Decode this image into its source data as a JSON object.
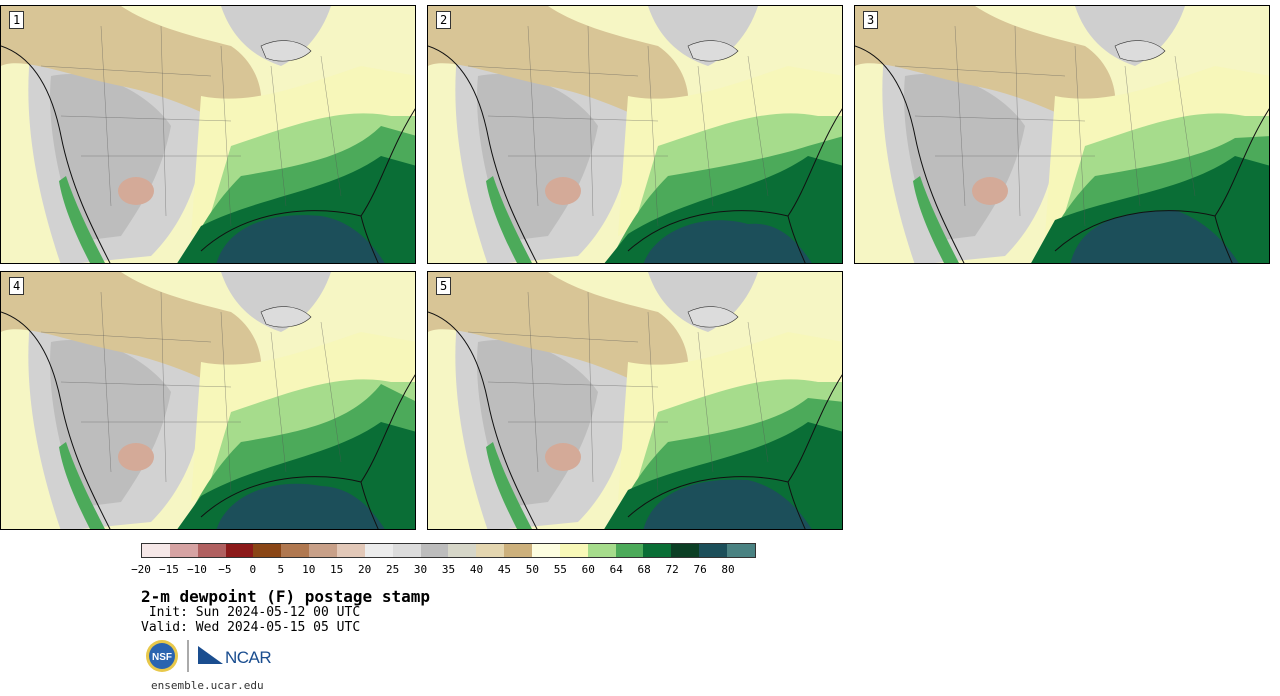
{
  "panels": [
    {
      "label": "1"
    },
    {
      "label": "2"
    },
    {
      "label": "3"
    },
    {
      "label": "4"
    },
    {
      "label": "5"
    }
  ],
  "colorbar": {
    "colors": [
      "#f6e8e8",
      "#d6a3a3",
      "#b06060",
      "#8c1a1a",
      "#8a4616",
      "#b07850",
      "#c8a088",
      "#e2c8b8",
      "#ececec",
      "#dcdcdc",
      "#bcbcbc",
      "#d6d6c8",
      "#e4d6b0",
      "#ccb07c",
      "#fdfde0",
      "#f8f8b8",
      "#a6dc8c",
      "#4caa5a",
      "#0a6e36",
      "#0c3f25",
      "#1c4f5a",
      "#4a8282"
    ],
    "ticks": [
      "−20",
      "−15",
      "−10",
      "−5",
      "0",
      "5",
      "10",
      "15",
      "20",
      "25",
      "30",
      "35",
      "40",
      "45",
      "50",
      "55",
      "60",
      "64",
      "68",
      "72",
      "76",
      "80"
    ]
  },
  "title": "2-m dewpoint (F) postage stamp",
  "init": " Init: Sun 2024-05-12 00 UTC",
  "valid": "Valid: Wed 2024-05-15 05 UTC",
  "logos": {
    "nsf": "NSF",
    "ncar": "NCAR"
  },
  "url": "ensemble.ucar.edu"
}
